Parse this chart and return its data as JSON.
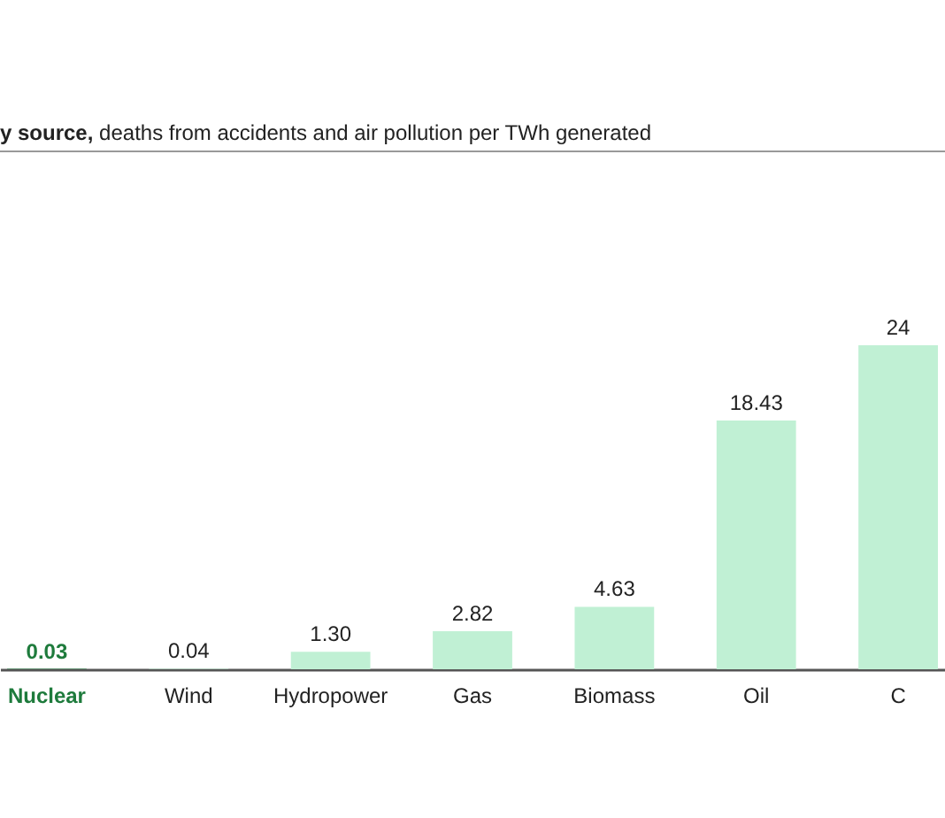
{
  "chart_data": {
    "type": "bar",
    "title": "y source,",
    "subtitle": "deaths from accidents and air pollution per TWh generated",
    "categories": [
      "Nuclear",
      "Wind",
      "Hydropower",
      "Gas",
      "Biomass",
      "Oil",
      "C"
    ],
    "values": [
      0.03,
      0.04,
      1.3,
      2.82,
      4.63,
      18.43,
      24
    ],
    "value_labels": [
      "0.03",
      "0.04",
      "1.30",
      "2.82",
      "4.63",
      "18.43",
      "24"
    ],
    "colors": [
      "#1e7b3c",
      "#c0f0d4",
      "#c0f0d4",
      "#c0f0d4",
      "#c0f0d4",
      "#c0f0d4",
      "#c0f0d4"
    ]
  }
}
